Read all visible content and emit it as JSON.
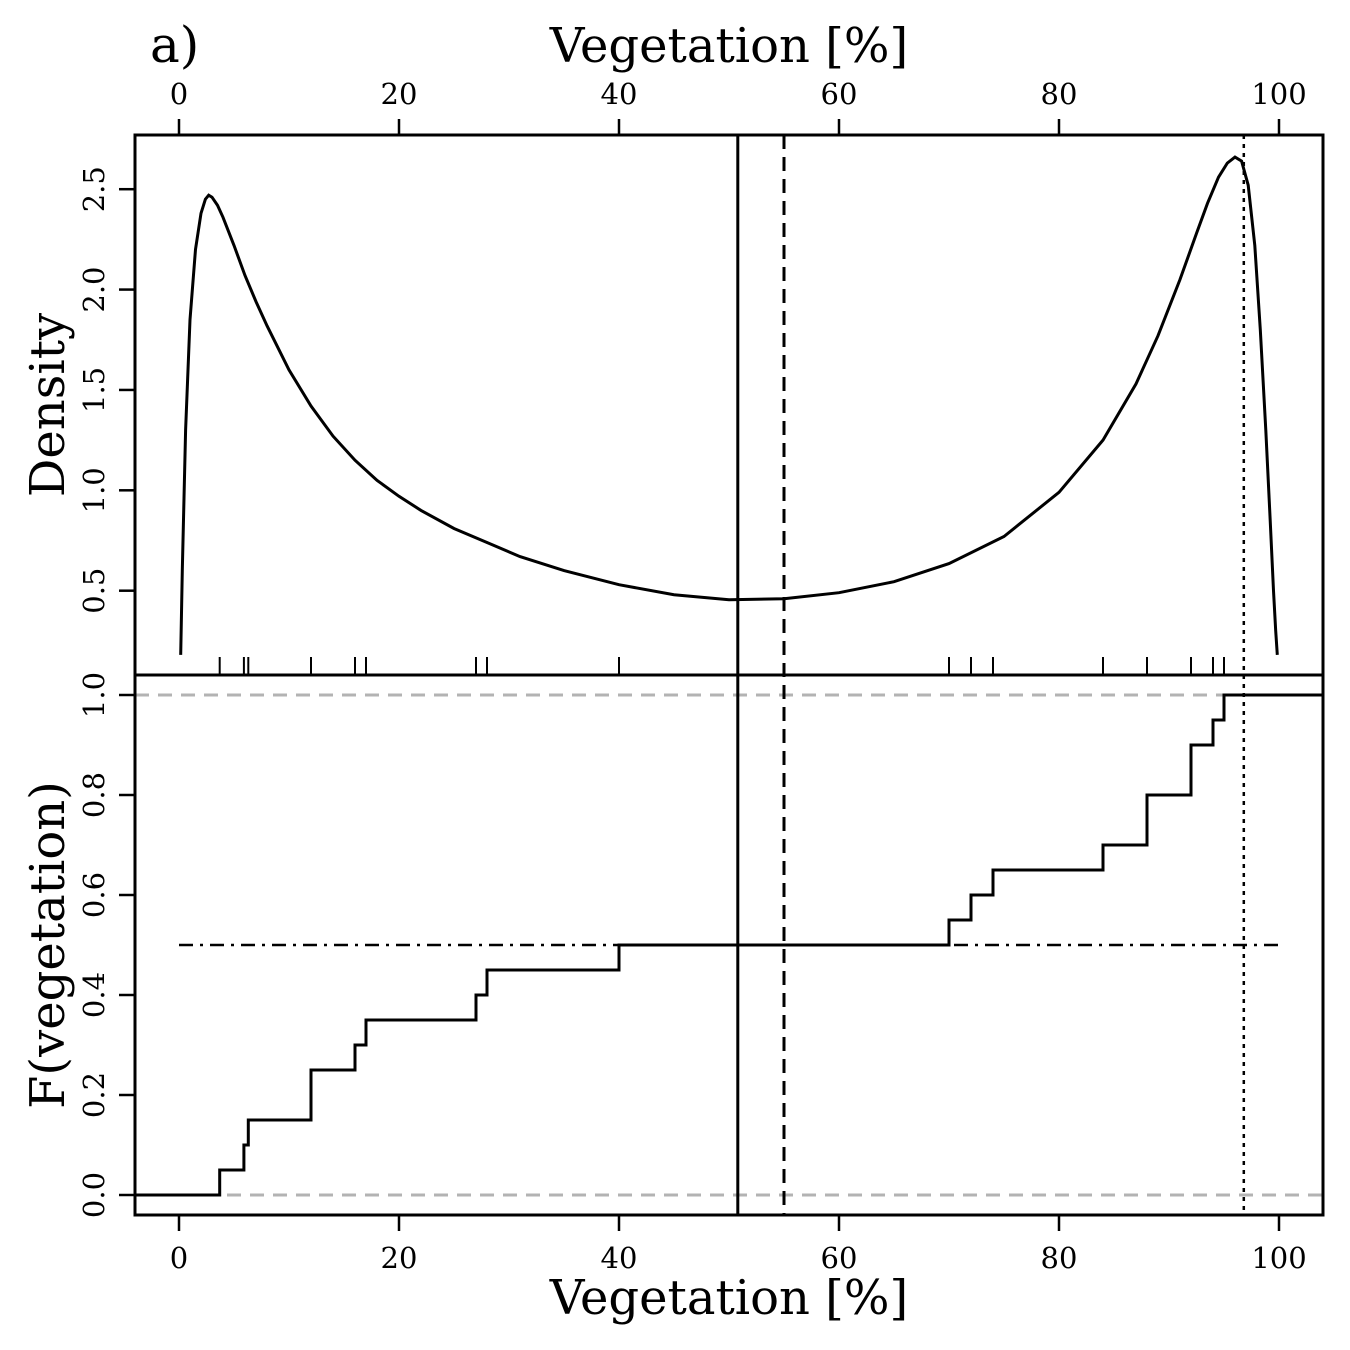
{
  "panel_label": "a)",
  "chart_data": [
    {
      "type": "line",
      "title": "",
      "xlabel": "Vegetation [%]",
      "ylabel": "Density",
      "xlim": [
        -4,
        104
      ],
      "ylim": [
        0.08,
        2.77
      ],
      "x_ticks": [
        "0",
        "20",
        "40",
        "60",
        "80",
        "100"
      ],
      "y_ticks": [
        "0.5",
        "1.0",
        "1.5",
        "2.0",
        "2.5"
      ],
      "series": [
        {
          "name": "density",
          "x": [
            0.15,
            0.3,
            0.6,
            1.0,
            1.5,
            2.0,
            2.4,
            2.7,
            3.0,
            3.5,
            4.0,
            5.0,
            6.0,
            7.0,
            8.0,
            10.0,
            12.0,
            14.0,
            16.0,
            18.0,
            20.0,
            22.0,
            25.0,
            28.0,
            31.0,
            35.0,
            40.0,
            45.0,
            50.0,
            55.0,
            60.0,
            65.0,
            70.0,
            75.0,
            80.0,
            84.0,
            87.0,
            89.0,
            91.0,
            92.5,
            93.5,
            94.5,
            95.3,
            96.0,
            96.6,
            97.2,
            97.8,
            98.3,
            98.8,
            99.2,
            99.5,
            99.7,
            99.85
          ],
          "y": [
            0.18,
            0.6,
            1.3,
            1.85,
            2.2,
            2.38,
            2.45,
            2.47,
            2.46,
            2.42,
            2.36,
            2.22,
            2.07,
            1.94,
            1.82,
            1.6,
            1.42,
            1.27,
            1.15,
            1.05,
            0.97,
            0.9,
            0.81,
            0.74,
            0.67,
            0.6,
            0.53,
            0.48,
            0.455,
            0.46,
            0.49,
            0.545,
            0.635,
            0.77,
            0.99,
            1.25,
            1.53,
            1.77,
            2.05,
            2.28,
            2.43,
            2.56,
            2.63,
            2.66,
            2.64,
            2.52,
            2.22,
            1.8,
            1.3,
            0.85,
            0.5,
            0.3,
            0.18
          ]
        }
      ],
      "rug": [
        3.7,
        5.9,
        6.3,
        12.0,
        16.0,
        17.0,
        27.0,
        28.0,
        40.0,
        70.0,
        72.0,
        74.0,
        84.0,
        88.0,
        92.0,
        94.0,
        95.0
      ]
    },
    {
      "type": "step",
      "title": "",
      "xlabel": "Vegetation [%]",
      "ylabel": "F(vegetation)",
      "xlim": [
        -4,
        104
      ],
      "ylim": [
        -0.04,
        1.04
      ],
      "x_ticks": [
        "0",
        "20",
        "40",
        "60",
        "80",
        "100"
      ],
      "y_ticks": [
        "0.0",
        "0.2",
        "0.4",
        "0.6",
        "0.8",
        "1.0"
      ],
      "ecdf_x": [
        3.7,
        5.9,
        6.3,
        12.0,
        16.0,
        17.0,
        27.0,
        28.0,
        40.0,
        70.0,
        72.0,
        74.0,
        84.0,
        88.0,
        92.0,
        94.0,
        95.0
      ],
      "ecdf_y": [
        0.05,
        0.1,
        0.15,
        0.25,
        0.3,
        0.35,
        0.4,
        0.45,
        0.5,
        0.55,
        0.6,
        0.65,
        0.7,
        0.8,
        0.9,
        0.95,
        1.0
      ],
      "hlines": [
        0.0,
        1.0
      ],
      "median_line": 0.5
    }
  ],
  "vertical_lines": [
    {
      "name": "solid",
      "x": 50.8
    },
    {
      "name": "dashed",
      "x": 55.0
    },
    {
      "name": "dotted",
      "x": 96.8
    }
  ]
}
